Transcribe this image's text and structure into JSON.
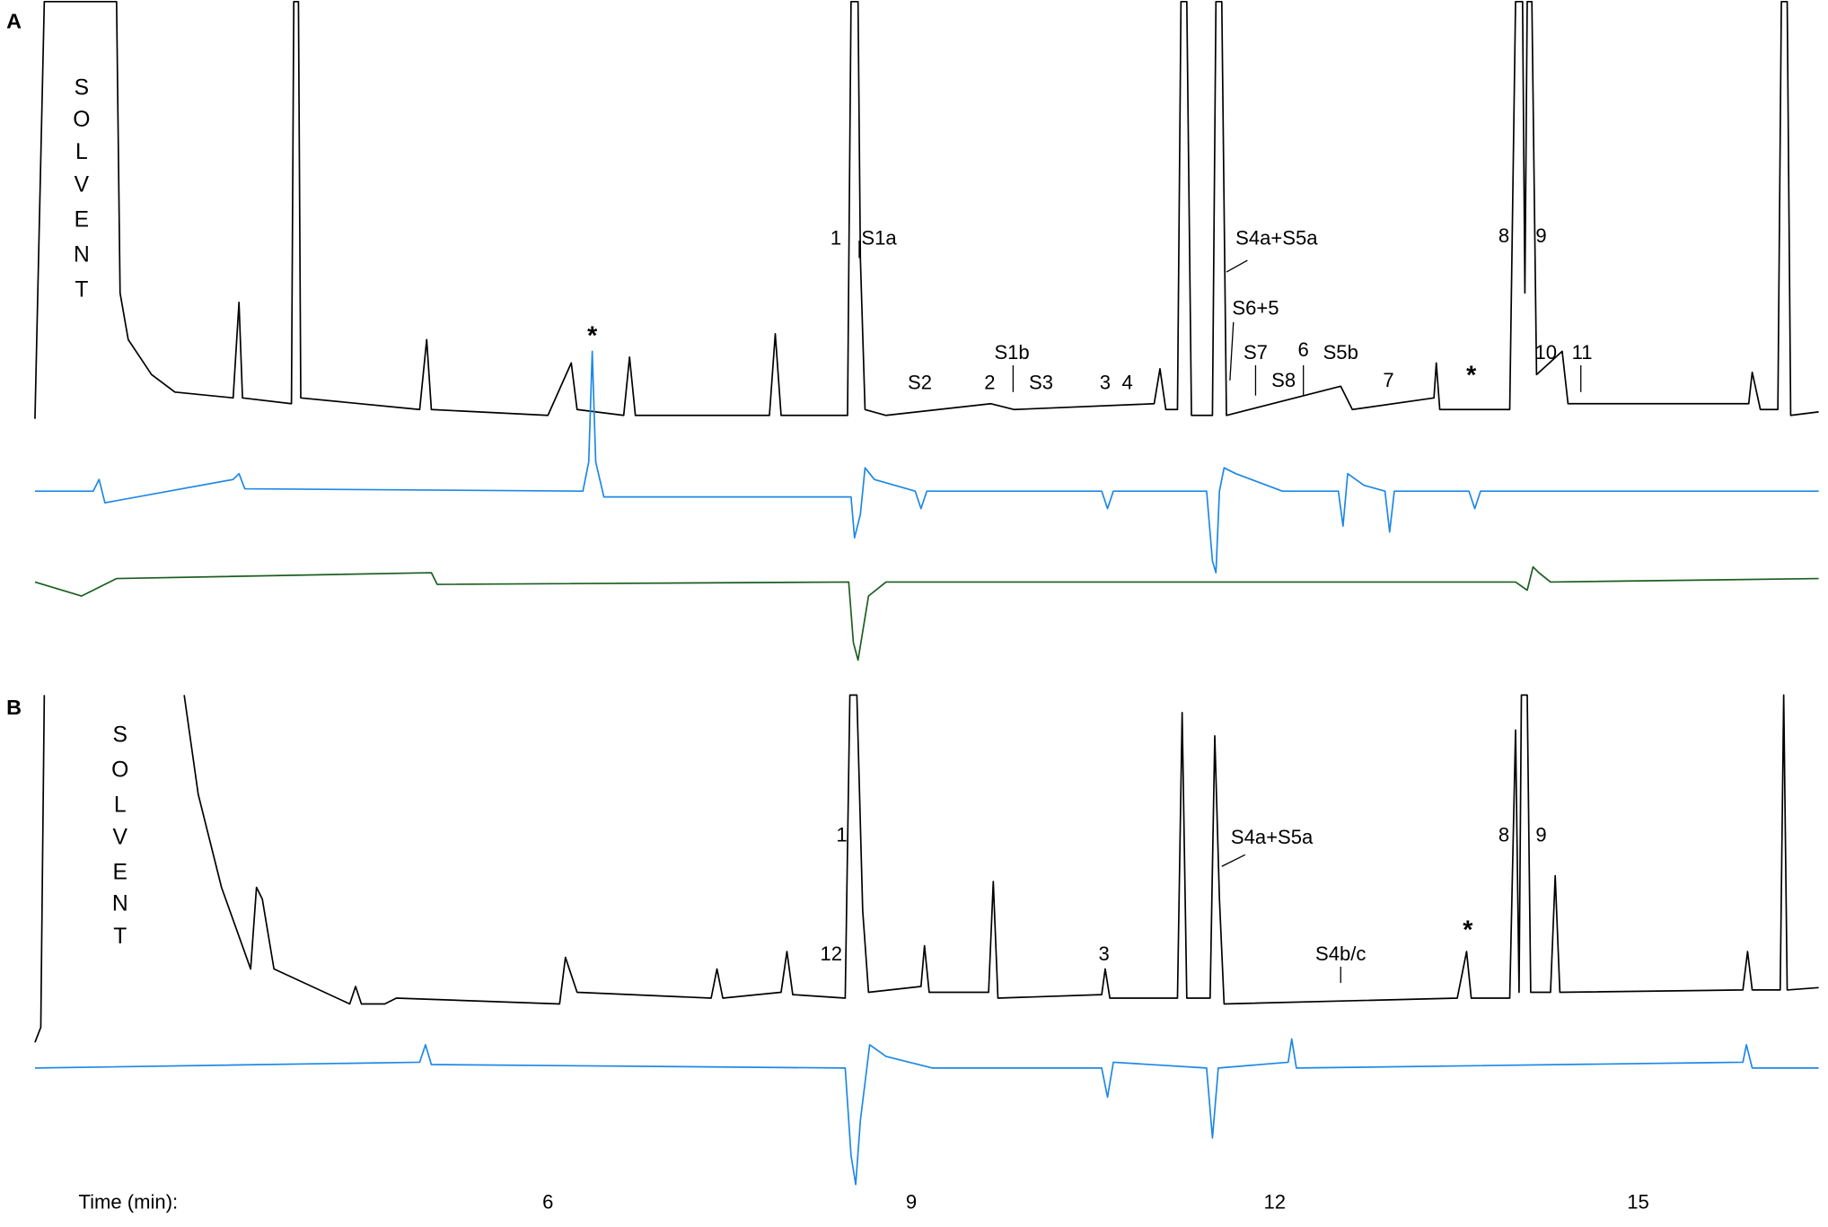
{
  "panels": [
    {
      "label": "A",
      "solvent": [
        "S",
        "O",
        "L",
        "V",
        "E",
        "N",
        "T"
      ],
      "peaks": [
        "1",
        "S1a",
        "S4a+S5a",
        "8",
        "9",
        "S6+5",
        "*",
        "S1b",
        "S7",
        "6",
        "S5b",
        "10",
        "11",
        "S2",
        "2",
        "S3",
        "3",
        "4",
        "S8",
        "7",
        "*"
      ]
    },
    {
      "label": "B",
      "solvent": [
        "S",
        "O",
        "L",
        "V",
        "E",
        "N",
        "T"
      ],
      "peaks": [
        "1",
        "S4a+S5a",
        "8",
        "9",
        "*",
        "12",
        "3",
        "S4b/c"
      ]
    }
  ],
  "axis": {
    "label": "Time (min):",
    "ticks": [
      6,
      9,
      12,
      15
    ]
  }
}
